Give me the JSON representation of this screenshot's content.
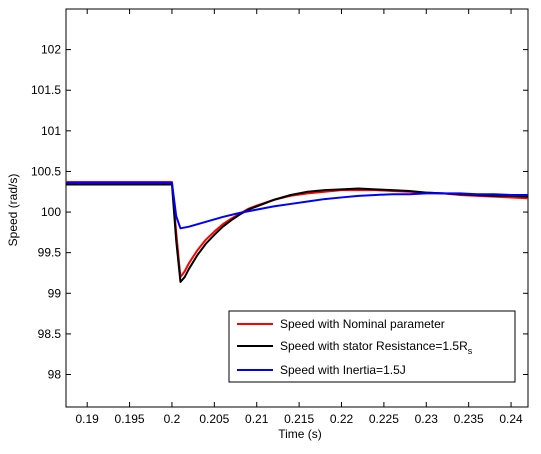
{
  "chart_data": {
    "type": "line",
    "title": "",
    "xlabel": "Time (s)",
    "ylabel": "Speed (rad/s)",
    "xlim": [
      0.1875,
      0.242
    ],
    "ylim": [
      97.6,
      102.5
    ],
    "grid": false,
    "legend_position": "bottom-right",
    "x_ticks": [
      0.19,
      0.195,
      0.2,
      0.205,
      0.21,
      0.215,
      0.22,
      0.225,
      0.23,
      0.235,
      0.24
    ],
    "x_tick_labels": [
      "0.19",
      "0.195",
      "0.2",
      "0.205",
      "0.21",
      "0.215",
      "0.22",
      "0.225",
      "0.23",
      "0.235",
      "0.24"
    ],
    "y_ticks": [
      98,
      98.5,
      99,
      99.5,
      100,
      100.5,
      101,
      101.5,
      102
    ],
    "y_tick_labels": [
      "98",
      "98.5",
      "99",
      "99.5",
      "100",
      "100.5",
      "101",
      "101.5",
      "102"
    ],
    "series": [
      {
        "name": "Speed with Nominal  parameter",
        "color": "#ff0000",
        "x": [
          0.1875,
          0.195,
          0.2,
          0.2005,
          0.201,
          0.2015,
          0.202,
          0.203,
          0.204,
          0.205,
          0.206,
          0.207,
          0.208,
          0.209,
          0.21,
          0.212,
          0.214,
          0.216,
          0.218,
          0.22,
          0.222,
          0.224,
          0.226,
          0.228,
          0.23,
          0.232,
          0.234,
          0.236,
          0.238,
          0.24,
          0.242
        ],
        "y": [
          100.37,
          100.37,
          100.37,
          99.75,
          99.2,
          99.27,
          99.37,
          99.53,
          99.66,
          99.76,
          99.85,
          99.92,
          99.98,
          100.04,
          100.08,
          100.15,
          100.2,
          100.23,
          100.25,
          100.27,
          100.27,
          100.27,
          100.26,
          100.25,
          100.24,
          100.23,
          100.21,
          100.2,
          100.19,
          100.18,
          100.17
        ]
      },
      {
        "name": "Speed with stator Resistance=1.5R",
        "name_subscript": "s",
        "color": "#000000",
        "x": [
          0.1875,
          0.195,
          0.2,
          0.2005,
          0.201,
          0.2015,
          0.202,
          0.203,
          0.204,
          0.205,
          0.206,
          0.207,
          0.208,
          0.209,
          0.21,
          0.212,
          0.214,
          0.216,
          0.218,
          0.22,
          0.222,
          0.224,
          0.226,
          0.228,
          0.23,
          0.232,
          0.234,
          0.236,
          0.238,
          0.24,
          0.242
        ],
        "y": [
          100.34,
          100.34,
          100.34,
          99.65,
          99.14,
          99.2,
          99.3,
          99.47,
          99.61,
          99.72,
          99.82,
          99.9,
          99.97,
          100.03,
          100.07,
          100.15,
          100.21,
          100.25,
          100.27,
          100.28,
          100.29,
          100.28,
          100.27,
          100.26,
          100.24,
          100.23,
          100.22,
          100.21,
          100.2,
          100.2,
          100.19
        ]
      },
      {
        "name": "Speed with Inertia=1.5J",
        "color": "#0000ff",
        "x": [
          0.1875,
          0.195,
          0.2,
          0.2005,
          0.201,
          0.202,
          0.204,
          0.206,
          0.208,
          0.21,
          0.212,
          0.214,
          0.216,
          0.218,
          0.22,
          0.222,
          0.224,
          0.226,
          0.228,
          0.23,
          0.232,
          0.234,
          0.236,
          0.238,
          0.24,
          0.242
        ],
        "y": [
          100.36,
          100.36,
          100.36,
          99.95,
          99.8,
          99.82,
          99.88,
          99.94,
          99.99,
          100.03,
          100.07,
          100.1,
          100.13,
          100.16,
          100.18,
          100.2,
          100.21,
          100.22,
          100.22,
          100.23,
          100.23,
          100.23,
          100.22,
          100.22,
          100.21,
          100.21
        ]
      }
    ]
  }
}
